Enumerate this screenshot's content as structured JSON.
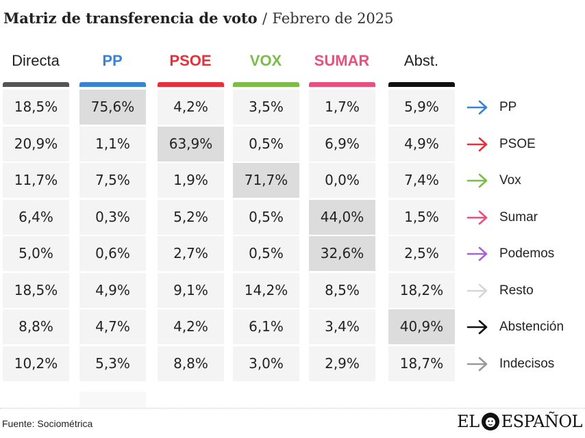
{
  "header": {
    "title": "Matriz de transferencia de voto",
    "separator": "/",
    "subtitle": "Febrero de 2025"
  },
  "chart_data": {
    "type": "table",
    "columns": [
      {
        "label": "Directa",
        "color": "#555555",
        "bold": false
      },
      {
        "label": "PP",
        "color": "#3a83d4",
        "bold": true
      },
      {
        "label": "PSOE",
        "color": "#e8303a",
        "bold": true
      },
      {
        "label": "VOX",
        "color": "#7cbd4a",
        "bold": true
      },
      {
        "label": "SUMAR",
        "color": "#ea4f7e",
        "bold": true
      },
      {
        "label": "Abst.",
        "color": "#111111",
        "bold": false
      }
    ],
    "rows": [
      {
        "label": "PP",
        "arrow_color": "#3a83d4",
        "values": [
          "18,5%",
          "75,6%",
          "4,2%",
          "3,5%",
          "1,7%",
          "5,9%"
        ],
        "highlight": [
          1
        ]
      },
      {
        "label": "PSOE",
        "arrow_color": "#e8303a",
        "values": [
          "20,9%",
          "1,1%",
          "63,9%",
          "0,5%",
          "6,9%",
          "4,9%"
        ],
        "highlight": [
          2
        ]
      },
      {
        "label": "Vox",
        "arrow_color": "#7cbd4a",
        "values": [
          "11,7%",
          "7,5%",
          "1,9%",
          "71,7%",
          "0,0%",
          "7,4%"
        ],
        "highlight": [
          3
        ]
      },
      {
        "label": "Sumar",
        "arrow_color": "#ea4f7e",
        "values": [
          "6,4%",
          "0,3%",
          "5,2%",
          "0,5%",
          "44,0%",
          "1,5%"
        ],
        "highlight": [
          4
        ]
      },
      {
        "label": "Podemos",
        "arrow_color": "#a563d6",
        "values": [
          "5,0%",
          "0,6%",
          "2,7%",
          "0,5%",
          "32,6%",
          "2,5%"
        ],
        "highlight": [
          4
        ]
      },
      {
        "label": "Resto",
        "arrow_color": "#d6d6d6",
        "values": [
          "18,5%",
          "4,9%",
          "9,1%",
          "14,2%",
          "8,5%",
          "18,2%"
        ],
        "highlight": []
      },
      {
        "label": "Abstención",
        "arrow_color": "#111111",
        "values": [
          "8,8%",
          "4,7%",
          "4,2%",
          "6,1%",
          "3,4%",
          "40,9%"
        ],
        "highlight": [
          5
        ]
      },
      {
        "label": "Indecisos",
        "arrow_color": "#999999",
        "values": [
          "10,2%",
          "5,3%",
          "8,8%",
          "3,0%",
          "2,9%",
          "18,7%"
        ],
        "highlight": []
      }
    ],
    "highlight_color": "#dcdcdc",
    "cell_color": "#f4f4f4"
  },
  "footer": {
    "source": "Fuente: Sociométrica",
    "logo_left": "EL",
    "logo_right": "ESPAÑOL",
    "logo_icon": "lion-head-icon"
  }
}
